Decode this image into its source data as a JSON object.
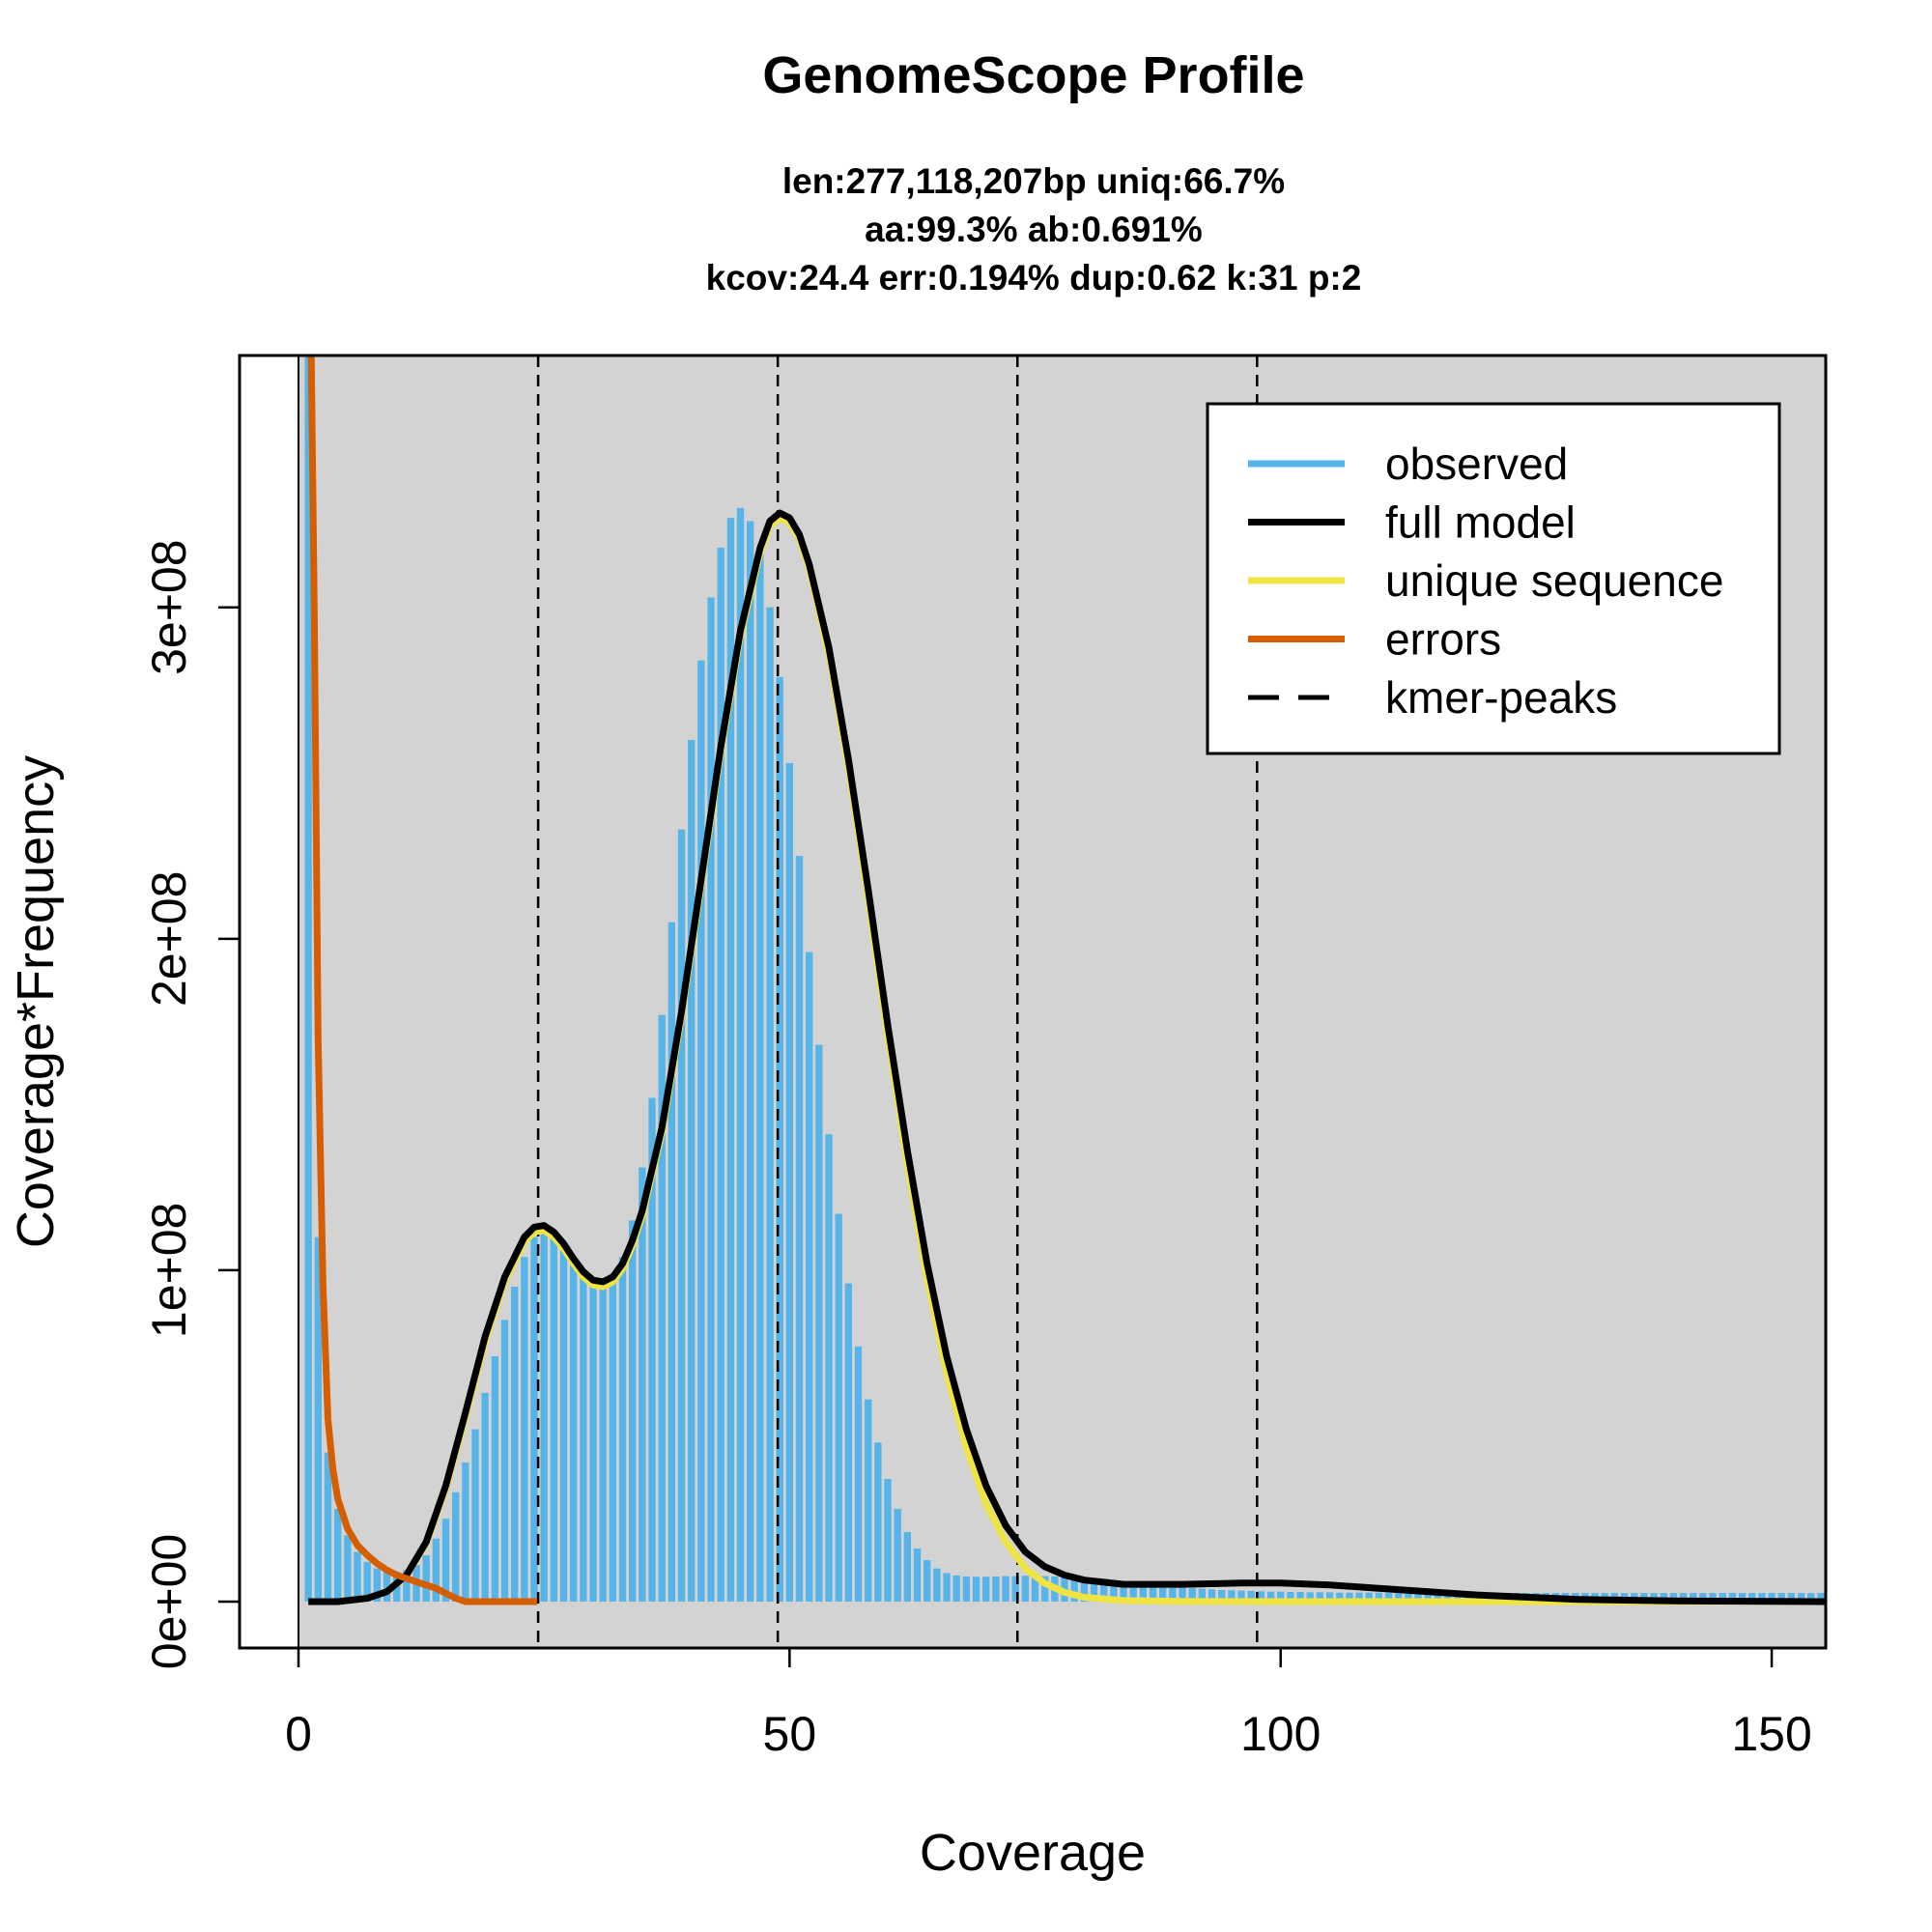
{
  "chart_data": {
    "type": "line",
    "title": "GenomeScope Profile",
    "subtitle_lines": [
      "len:277,118,207bp uniq:66.7%",
      "aa:99.3% ab:0.691%",
      "kcov:24.4 err:0.194%  dup:0.62  k:31 p:2"
    ],
    "xlabel": "Coverage",
    "ylabel": "Coverage*Frequency",
    "xlim": [
      -6,
      155.5
    ],
    "ylim": [
      -14000000,
      376000000
    ],
    "x_ticks": [
      0,
      50,
      100,
      150
    ],
    "x_tick_labels": [
      "0",
      "50",
      "100",
      "150"
    ],
    "y_ticks": [
      0,
      100000000,
      200000000,
      300000000
    ],
    "y_tick_labels": [
      "0e+00",
      "1e+08",
      "2e+08",
      "3e+08"
    ],
    "background_color": "#d3d3d3",
    "kmer_peaks": [
      24.4,
      48.8,
      73.2,
      97.6
    ],
    "legend": {
      "position": "top-right",
      "entries": [
        {
          "label": "observed",
          "color": "#56b4e9",
          "style": "solid"
        },
        {
          "label": "full model",
          "color": "#000000",
          "style": "solid"
        },
        {
          "label": "unique sequence",
          "color": "#f0e442",
          "style": "solid"
        },
        {
          "label": "errors",
          "color": "#d55e00",
          "style": "solid"
        },
        {
          "label": "kmer-peaks",
          "color": "#000000",
          "style": "dashed"
        }
      ]
    },
    "observed": {
      "x_start": 1,
      "x_end": 155,
      "y": [
        380000000,
        110000000,
        45000000,
        28000000,
        20000000,
        15000000,
        12000000,
        10000000,
        9000000,
        9000000,
        9500000,
        11000000,
        14000000,
        19000000,
        25000000,
        33000000,
        42000000,
        52000000,
        63000000,
        74000000,
        85000000,
        95000000,
        104000000,
        110000000,
        112000000,
        110000000,
        106000000,
        102000000,
        99000000,
        97000000,
        96000000,
        98000000,
        104000000,
        115000000,
        131000000,
        152000000,
        177000000,
        205000000,
        233000000,
        260000000,
        284000000,
        303000000,
        318000000,
        327000000,
        330000000,
        326000000,
        316000000,
        300000000,
        279000000,
        253000000,
        225000000,
        196000000,
        168000000,
        141000000,
        117000000,
        96000000,
        77000000,
        61000000,
        48000000,
        37000000,
        28000000,
        21000000,
        16000000,
        12500000,
        10000000,
        8600000,
        7900000,
        7600000,
        7500000,
        7500000,
        7600000,
        7700000,
        7700000,
        7800000,
        7800000,
        7700000,
        7600000,
        7500000,
        7300000,
        7100000,
        6900000,
        6600000,
        6300000,
        6000000,
        5700000,
        5400000,
        5100000,
        4800000,
        4500000,
        4300000,
        4100000,
        3900000,
        3700000,
        3500000,
        3400000,
        3300000,
        3200000,
        3100000,
        3000000,
        3000000,
        2900000,
        2900000,
        2800000,
        2800000,
        2800000,
        2700000,
        2700000,
        2700000,
        2700000,
        2700000,
        2700000,
        2700000,
        2700000,
        2700000,
        2600000,
        2600000,
        2600000,
        2600000,
        2600000,
        2600000,
        2600000,
        2600000,
        2600000,
        2600000,
        2600000,
        2600000,
        2600000,
        2600000,
        2600000,
        2600000,
        2600000,
        2600000,
        2600000,
        2600000,
        2600000,
        2600000,
        2600000,
        2600000,
        2600000,
        2600000,
        2600000,
        2600000,
        2600000,
        2600000,
        2600000,
        2600000,
        2600000,
        2600000,
        2600000,
        2600000,
        2600000,
        2600000,
        2600000,
        2600000,
        2600000
      ]
    },
    "full_model": {
      "x": [
        1,
        4,
        7,
        9,
        11,
        13,
        15,
        17,
        19,
        21,
        23,
        24,
        25,
        26,
        27,
        28,
        29,
        30,
        31,
        32,
        33,
        34,
        35,
        37,
        39,
        41,
        43,
        45,
        47,
        48,
        49,
        50,
        51,
        52,
        54,
        56,
        58,
        60,
        62,
        64,
        66,
        68,
        70,
        72,
        74,
        76,
        78,
        80,
        84,
        90,
        96,
        100,
        105,
        110,
        120,
        130,
        140,
        150,
        155.5
      ],
      "y": [
        0,
        0,
        1000000,
        3000000,
        8000000,
        18000000,
        35000000,
        57000000,
        80000000,
        98000000,
        110000000,
        113000000,
        113500000,
        111500000,
        108000000,
        103500000,
        99500000,
        97000000,
        96500000,
        98000000,
        102000000,
        109000000,
        118000000,
        143000000,
        178000000,
        218000000,
        258000000,
        293000000,
        318000000,
        326000000,
        328500000,
        327000000,
        322000000,
        313000000,
        288000000,
        254000000,
        215000000,
        174000000,
        136000000,
        102000000,
        74000000,
        52000000,
        35000000,
        23000000,
        15000000,
        10500000,
        8000000,
        6500000,
        5200000,
        5200000,
        5600000,
        5600000,
        5000000,
        4000000,
        2000000,
        700000,
        200000,
        50000,
        0
      ]
    },
    "unique_sequence": {
      "x": [
        1,
        4,
        7,
        9,
        11,
        13,
        15,
        17,
        19,
        21,
        23,
        24,
        25,
        26,
        27,
        28,
        29,
        30,
        31,
        32,
        33,
        34,
        35,
        37,
        39,
        41,
        43,
        45,
        47,
        48,
        49,
        50,
        51,
        52,
        54,
        56,
        58,
        60,
        62,
        64,
        66,
        68,
        70,
        72,
        74,
        76,
        78,
        80,
        84,
        90,
        100,
        110,
        120,
        130,
        140,
        150,
        155.5
      ],
      "y": [
        0,
        0,
        1000000,
        3000000,
        8000000,
        17500000,
        34000000,
        55500000,
        78500000,
        96500000,
        108500000,
        111500000,
        112000000,
        110000000,
        106500000,
        102000000,
        98000000,
        95500000,
        95000000,
        96500000,
        100500000,
        107500000,
        116500000,
        141500000,
        176500000,
        216500000,
        256500000,
        291500000,
        316500000,
        324500000,
        327000000,
        325500000,
        320500000,
        311500000,
        286000000,
        251500000,
        212000000,
        170500000,
        132000000,
        97500000,
        69000000,
        46500000,
        29500000,
        18000000,
        10000000,
        5500000,
        2800000,
        1300000,
        300000,
        50000,
        0,
        0,
        0,
        0,
        0,
        0,
        0
      ]
    },
    "errors": {
      "x": [
        1.3,
        1.6,
        2,
        2.5,
        3,
        3.5,
        4,
        5,
        6,
        7,
        8,
        9,
        10,
        11,
        12,
        13,
        14,
        15,
        16,
        17,
        18,
        19,
        20,
        21,
        22,
        23,
        24.3
      ],
      "y": [
        376000000,
        300000000,
        170000000,
        95000000,
        55000000,
        40000000,
        31000000,
        22000000,
        17000000,
        14000000,
        11500000,
        9500000,
        8000000,
        7000000,
        6000000,
        5000000,
        4000000,
        2500000,
        1000000,
        0,
        0,
        0,
        0,
        0,
        0,
        0,
        0
      ]
    }
  }
}
